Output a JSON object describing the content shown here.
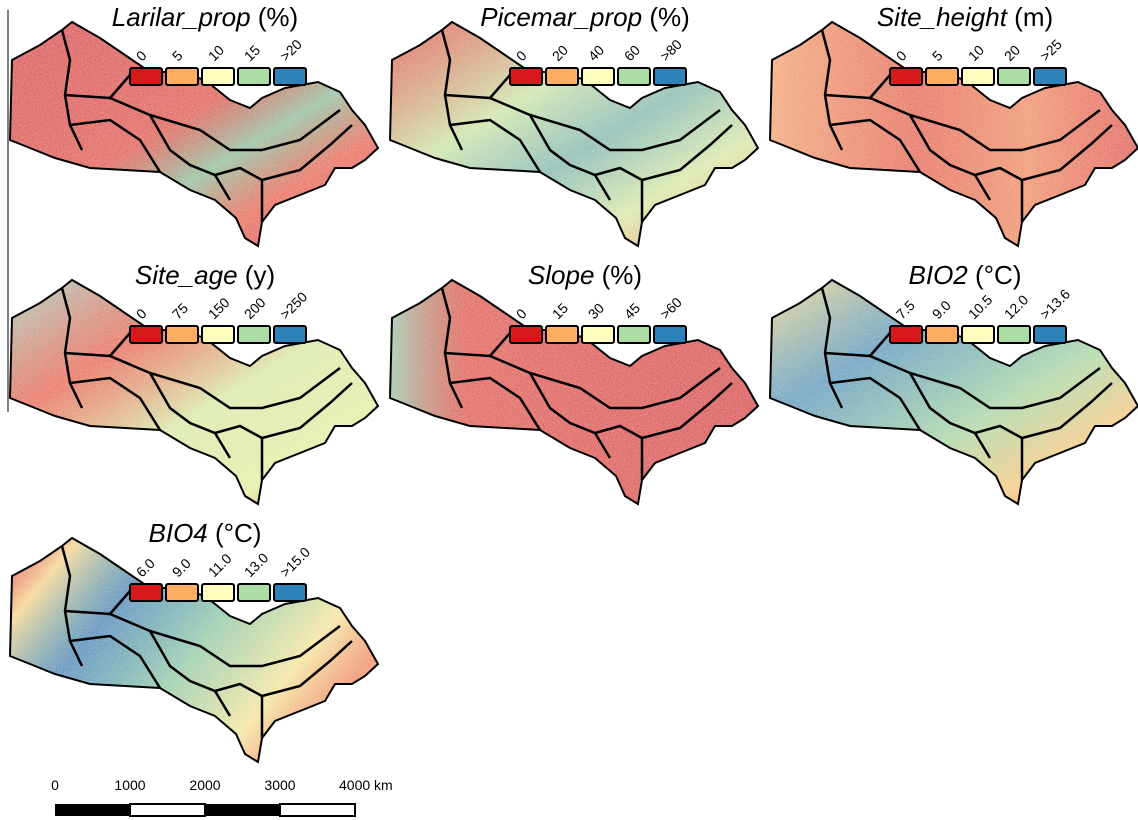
{
  "panels": [
    {
      "title": "Larilar_prop",
      "unit": "(%)",
      "legend": [
        "0",
        "5",
        "10",
        "15",
        ">20"
      ]
    },
    {
      "title": "Picemar_prop",
      "unit": "(%)",
      "legend": [
        "0",
        "20",
        "40",
        "60",
        ">80"
      ]
    },
    {
      "title": "Site_height",
      "unit": "(m)",
      "legend": [
        "0",
        "5",
        "10",
        "20",
        ">25"
      ]
    },
    {
      "title": "Site_age",
      "unit": "(y)",
      "legend": [
        "0",
        "75",
        "150",
        "200",
        ">250"
      ]
    },
    {
      "title": "Slope",
      "unit": "(%)",
      "legend": [
        "0",
        "15",
        "30",
        "45",
        ">60"
      ]
    },
    {
      "title": "BIO2",
      "unit": "(°C)",
      "legend": [
        "7.5",
        "9.0",
        "10.5",
        "12.0",
        ">13.6"
      ]
    },
    {
      "title": "BIO4",
      "unit": "(°C)",
      "legend": [
        "6.0",
        "9.0",
        "11.0",
        "13.0",
        ">15.0"
      ]
    }
  ],
  "legend_colors": [
    "#d7191c",
    "#fdae61",
    "#ffffbf",
    "#abdda4",
    "#2b83ba"
  ],
  "scale_bar": {
    "labels": [
      "0",
      "1000",
      "2000",
      "3000",
      "4000 km"
    ]
  }
}
